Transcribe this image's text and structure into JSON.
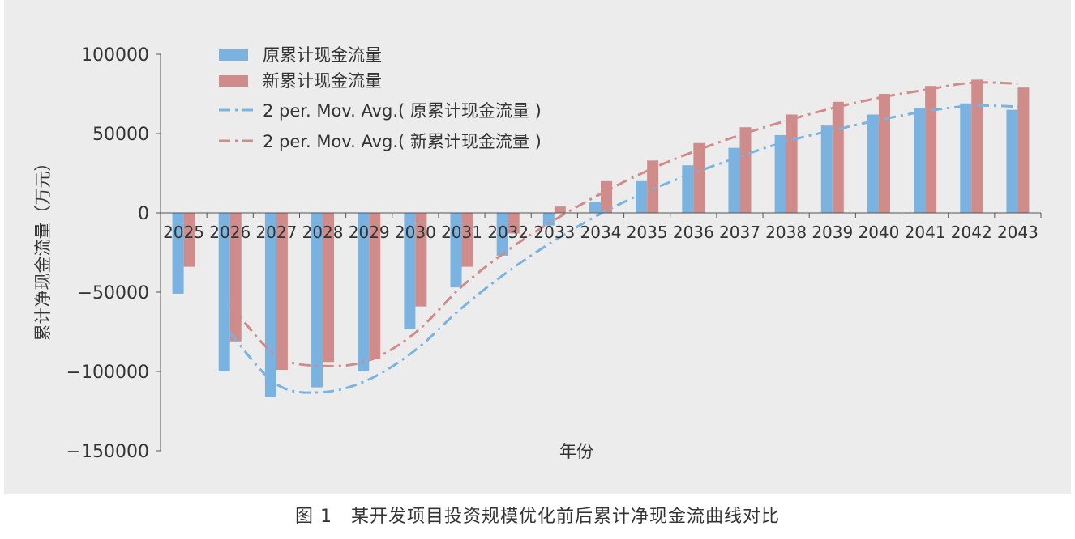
{
  "caption": "图 1　某开发项目投资规模优化前后累计净现金流曲线对比",
  "chart_data": {
    "type": "bar",
    "xlabel": "年份",
    "ylabel": "累计净现金流量（万元）",
    "ylim": [
      -150000,
      100000
    ],
    "yticks": [
      100000,
      50000,
      0,
      -50000,
      -100000,
      -150000
    ],
    "ytick_labels": [
      "100000",
      "50000",
      "0",
      "−50000",
      "−100000",
      "−150000"
    ],
    "categories": [
      "2025",
      "2026",
      "2027",
      "2028",
      "2029",
      "2030",
      "2031",
      "2032",
      "2033",
      "2034",
      "2035",
      "2036",
      "2037",
      "2038",
      "2039",
      "2040",
      "2041",
      "2042",
      "2043"
    ],
    "series": [
      {
        "name": "原累计现金流量",
        "color": "#7ab3e0",
        "values": [
          -51000,
          -100000,
          -116000,
          -110000,
          -100000,
          -73000,
          -47000,
          -27000,
          -8000,
          7000,
          20000,
          30000,
          41000,
          49000,
          55000,
          62000,
          66000,
          69000,
          65000
        ]
      },
      {
        "name": "新累计现金流量",
        "color": "#d08c8a",
        "values": [
          -34000,
          -81000,
          -99000,
          -94000,
          -92000,
          -59000,
          -34000,
          -13000,
          4000,
          20000,
          33000,
          44000,
          54000,
          62000,
          70000,
          75000,
          80000,
          84000,
          79000
        ]
      }
    ],
    "trendlines": [
      {
        "name": "2 per. Mov. Avg.( 原累计现金流量 )",
        "color": "#7ab3e0"
      },
      {
        "name": "2 per. Mov. Avg.( 新累计现金流量 )",
        "color": "#d08c8a"
      }
    ],
    "legend_position": "top-left"
  }
}
